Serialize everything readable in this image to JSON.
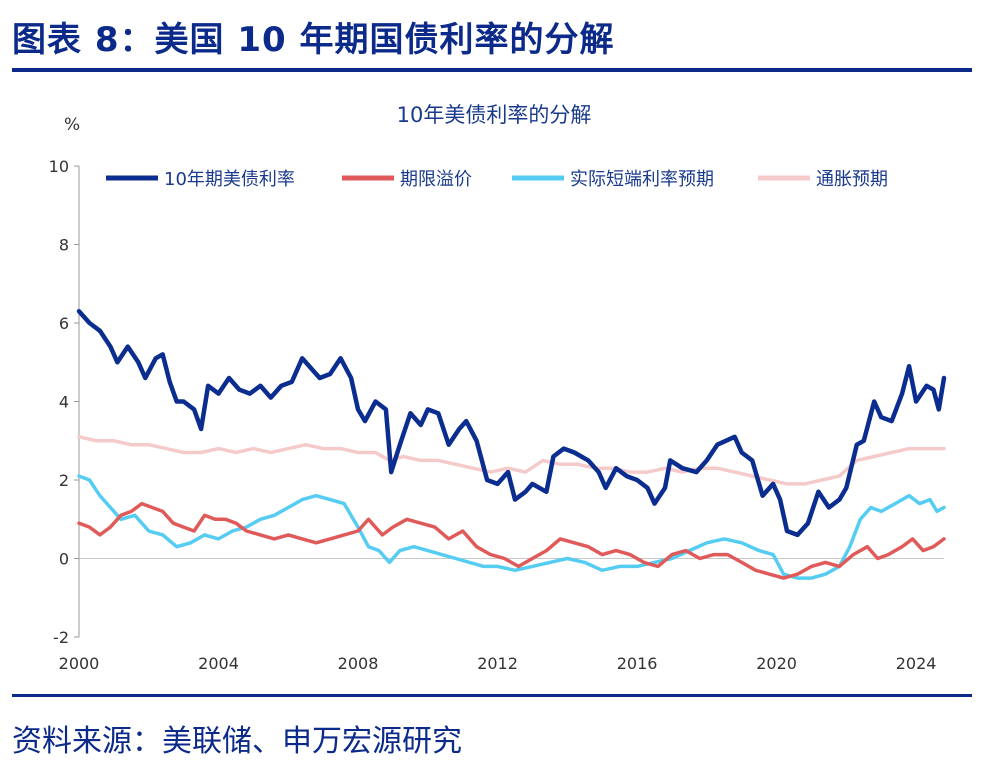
{
  "figure": {
    "title": "图表 8：美国 10 年期国债利率的分解",
    "source": "资料来源：美联储、申万宏源研究",
    "color": "#0b2a8a"
  },
  "chart_data": {
    "type": "line",
    "title": "10年美债利率的分解",
    "ylabel": "%",
    "xlabel": "",
    "xlim": [
      2000,
      2024.8
    ],
    "ylim": [
      -2,
      10
    ],
    "x_ticks": [
      2000,
      2004,
      2008,
      2012,
      2016,
      2020,
      2024
    ],
    "y_ticks": [
      -2,
      0,
      2,
      4,
      6,
      8,
      10
    ],
    "legend_position": "top",
    "series": [
      {
        "name": "10年期美债利率",
        "color": "#0b2d8f",
        "points": [
          [
            2000.0,
            6.3
          ],
          [
            2000.3,
            6.0
          ],
          [
            2000.6,
            5.8
          ],
          [
            2000.9,
            5.4
          ],
          [
            2001.1,
            5.0
          ],
          [
            2001.4,
            5.4
          ],
          [
            2001.7,
            5.0
          ],
          [
            2001.9,
            4.6
          ],
          [
            2002.2,
            5.1
          ],
          [
            2002.4,
            5.2
          ],
          [
            2002.6,
            4.5
          ],
          [
            2002.8,
            4.0
          ],
          [
            2003.0,
            4.0
          ],
          [
            2003.3,
            3.8
          ],
          [
            2003.5,
            3.3
          ],
          [
            2003.7,
            4.4
          ],
          [
            2004.0,
            4.2
          ],
          [
            2004.3,
            4.6
          ],
          [
            2004.6,
            4.3
          ],
          [
            2004.9,
            4.2
          ],
          [
            2005.2,
            4.4
          ],
          [
            2005.5,
            4.1
          ],
          [
            2005.8,
            4.4
          ],
          [
            2006.1,
            4.5
          ],
          [
            2006.4,
            5.1
          ],
          [
            2006.7,
            4.8
          ],
          [
            2006.9,
            4.6
          ],
          [
            2007.2,
            4.7
          ],
          [
            2007.5,
            5.1
          ],
          [
            2007.8,
            4.6
          ],
          [
            2008.0,
            3.8
          ],
          [
            2008.2,
            3.5
          ],
          [
            2008.5,
            4.0
          ],
          [
            2008.8,
            3.8
          ],
          [
            2008.95,
            2.2
          ],
          [
            2009.2,
            2.9
          ],
          [
            2009.5,
            3.7
          ],
          [
            2009.8,
            3.4
          ],
          [
            2010.0,
            3.8
          ],
          [
            2010.3,
            3.7
          ],
          [
            2010.6,
            2.9
          ],
          [
            2010.9,
            3.3
          ],
          [
            2011.1,
            3.5
          ],
          [
            2011.4,
            3.0
          ],
          [
            2011.7,
            2.0
          ],
          [
            2012.0,
            1.9
          ],
          [
            2012.3,
            2.2
          ],
          [
            2012.5,
            1.5
          ],
          [
            2012.8,
            1.7
          ],
          [
            2013.0,
            1.9
          ],
          [
            2013.4,
            1.7
          ],
          [
            2013.6,
            2.6
          ],
          [
            2013.9,
            2.8
          ],
          [
            2014.2,
            2.7
          ],
          [
            2014.6,
            2.5
          ],
          [
            2014.9,
            2.2
          ],
          [
            2015.1,
            1.8
          ],
          [
            2015.4,
            2.3
          ],
          [
            2015.7,
            2.1
          ],
          [
            2016.0,
            2.0
          ],
          [
            2016.3,
            1.8
          ],
          [
            2016.5,
            1.4
          ],
          [
            2016.8,
            1.8
          ],
          [
            2016.95,
            2.5
          ],
          [
            2017.3,
            2.3
          ],
          [
            2017.7,
            2.2
          ],
          [
            2018.0,
            2.5
          ],
          [
            2018.3,
            2.9
          ],
          [
            2018.8,
            3.1
          ],
          [
            2019.0,
            2.7
          ],
          [
            2019.3,
            2.5
          ],
          [
            2019.6,
            1.6
          ],
          [
            2019.9,
            1.9
          ],
          [
            2020.1,
            1.5
          ],
          [
            2020.3,
            0.7
          ],
          [
            2020.6,
            0.6
          ],
          [
            2020.9,
            0.9
          ],
          [
            2021.2,
            1.7
          ],
          [
            2021.5,
            1.3
          ],
          [
            2021.8,
            1.5
          ],
          [
            2022.0,
            1.8
          ],
          [
            2022.3,
            2.9
          ],
          [
            2022.5,
            3.0
          ],
          [
            2022.8,
            4.0
          ],
          [
            2023.0,
            3.6
          ],
          [
            2023.3,
            3.5
          ],
          [
            2023.6,
            4.2
          ],
          [
            2023.8,
            4.9
          ],
          [
            2024.0,
            4.0
          ],
          [
            2024.3,
            4.4
          ],
          [
            2024.5,
            4.3
          ],
          [
            2024.65,
            3.8
          ],
          [
            2024.8,
            4.6
          ]
        ]
      },
      {
        "name": "期限溢价",
        "color": "#e05a5a",
        "points": [
          [
            2000.0,
            0.9
          ],
          [
            2000.3,
            0.8
          ],
          [
            2000.6,
            0.6
          ],
          [
            2000.9,
            0.8
          ],
          [
            2001.2,
            1.1
          ],
          [
            2001.5,
            1.2
          ],
          [
            2001.8,
            1.4
          ],
          [
            2002.1,
            1.3
          ],
          [
            2002.4,
            1.2
          ],
          [
            2002.7,
            0.9
          ],
          [
            2003.0,
            0.8
          ],
          [
            2003.3,
            0.7
          ],
          [
            2003.6,
            1.1
          ],
          [
            2003.9,
            1.0
          ],
          [
            2004.2,
            1.0
          ],
          [
            2004.5,
            0.9
          ],
          [
            2004.8,
            0.7
          ],
          [
            2005.2,
            0.6
          ],
          [
            2005.6,
            0.5
          ],
          [
            2006.0,
            0.6
          ],
          [
            2006.4,
            0.5
          ],
          [
            2006.8,
            0.4
          ],
          [
            2007.2,
            0.5
          ],
          [
            2007.6,
            0.6
          ],
          [
            2008.0,
            0.7
          ],
          [
            2008.3,
            1.0
          ],
          [
            2008.7,
            0.6
          ],
          [
            2009.0,
            0.8
          ],
          [
            2009.4,
            1.0
          ],
          [
            2009.8,
            0.9
          ],
          [
            2010.2,
            0.8
          ],
          [
            2010.6,
            0.5
          ],
          [
            2011.0,
            0.7
          ],
          [
            2011.4,
            0.3
          ],
          [
            2011.8,
            0.1
          ],
          [
            2012.2,
            0.0
          ],
          [
            2012.6,
            -0.2
          ],
          [
            2013.0,
            0.0
          ],
          [
            2013.4,
            0.2
          ],
          [
            2013.8,
            0.5
          ],
          [
            2014.2,
            0.4
          ],
          [
            2014.6,
            0.3
          ],
          [
            2015.0,
            0.1
          ],
          [
            2015.4,
            0.2
          ],
          [
            2015.8,
            0.1
          ],
          [
            2016.2,
            -0.1
          ],
          [
            2016.6,
            -0.2
          ],
          [
            2017.0,
            0.1
          ],
          [
            2017.4,
            0.2
          ],
          [
            2017.8,
            0.0
          ],
          [
            2018.2,
            0.1
          ],
          [
            2018.6,
            0.1
          ],
          [
            2019.0,
            -0.1
          ],
          [
            2019.4,
            -0.3
          ],
          [
            2019.8,
            -0.4
          ],
          [
            2020.2,
            -0.5
          ],
          [
            2020.6,
            -0.4
          ],
          [
            2021.0,
            -0.2
          ],
          [
            2021.4,
            -0.1
          ],
          [
            2021.8,
            -0.2
          ],
          [
            2022.2,
            0.1
          ],
          [
            2022.6,
            0.3
          ],
          [
            2022.9,
            0.0
          ],
          [
            2023.2,
            0.1
          ],
          [
            2023.6,
            0.3
          ],
          [
            2023.9,
            0.5
          ],
          [
            2024.2,
            0.2
          ],
          [
            2024.5,
            0.3
          ],
          [
            2024.8,
            0.5
          ]
        ]
      },
      {
        "name": "实际短端利率预期",
        "color": "#55ccf2",
        "points": [
          [
            2000.0,
            2.1
          ],
          [
            2000.3,
            2.0
          ],
          [
            2000.6,
            1.6
          ],
          [
            2000.9,
            1.3
          ],
          [
            2001.2,
            1.0
          ],
          [
            2001.6,
            1.1
          ],
          [
            2002.0,
            0.7
          ],
          [
            2002.4,
            0.6
          ],
          [
            2002.8,
            0.3
          ],
          [
            2003.2,
            0.4
          ],
          [
            2003.6,
            0.6
          ],
          [
            2004.0,
            0.5
          ],
          [
            2004.4,
            0.7
          ],
          [
            2004.8,
            0.8
          ],
          [
            2005.2,
            1.0
          ],
          [
            2005.6,
            1.1
          ],
          [
            2006.0,
            1.3
          ],
          [
            2006.4,
            1.5
          ],
          [
            2006.8,
            1.6
          ],
          [
            2007.2,
            1.5
          ],
          [
            2007.6,
            1.4
          ],
          [
            2008.0,
            0.8
          ],
          [
            2008.3,
            0.3
          ],
          [
            2008.6,
            0.2
          ],
          [
            2008.9,
            -0.1
          ],
          [
            2009.2,
            0.2
          ],
          [
            2009.6,
            0.3
          ],
          [
            2010.0,
            0.2
          ],
          [
            2010.4,
            0.1
          ],
          [
            2010.8,
            0.0
          ],
          [
            2011.2,
            -0.1
          ],
          [
            2011.6,
            -0.2
          ],
          [
            2012.0,
            -0.2
          ],
          [
            2012.5,
            -0.3
          ],
          [
            2013.0,
            -0.2
          ],
          [
            2013.5,
            -0.1
          ],
          [
            2014.0,
            0.0
          ],
          [
            2014.5,
            -0.1
          ],
          [
            2015.0,
            -0.3
          ],
          [
            2015.5,
            -0.2
          ],
          [
            2016.0,
            -0.2
          ],
          [
            2016.5,
            -0.1
          ],
          [
            2017.0,
            0.0
          ],
          [
            2017.5,
            0.2
          ],
          [
            2018.0,
            0.4
          ],
          [
            2018.5,
            0.5
          ],
          [
            2019.0,
            0.4
          ],
          [
            2019.5,
            0.2
          ],
          [
            2019.9,
            0.1
          ],
          [
            2020.2,
            -0.4
          ],
          [
            2020.6,
            -0.5
          ],
          [
            2021.0,
            -0.5
          ],
          [
            2021.4,
            -0.4
          ],
          [
            2021.8,
            -0.2
          ],
          [
            2022.1,
            0.3
          ],
          [
            2022.4,
            1.0
          ],
          [
            2022.7,
            1.3
          ],
          [
            2023.0,
            1.2
          ],
          [
            2023.4,
            1.4
          ],
          [
            2023.8,
            1.6
          ],
          [
            2024.1,
            1.4
          ],
          [
            2024.4,
            1.5
          ],
          [
            2024.6,
            1.2
          ],
          [
            2024.8,
            1.3
          ]
        ]
      },
      {
        "name": "通胀预期",
        "color": "#f4caca",
        "points": [
          [
            2000.0,
            3.1
          ],
          [
            2000.5,
            3.0
          ],
          [
            2001.0,
            3.0
          ],
          [
            2001.5,
            2.9
          ],
          [
            2002.0,
            2.9
          ],
          [
            2002.5,
            2.8
          ],
          [
            2003.0,
            2.7
          ],
          [
            2003.5,
            2.7
          ],
          [
            2004.0,
            2.8
          ],
          [
            2004.5,
            2.7
          ],
          [
            2005.0,
            2.8
          ],
          [
            2005.5,
            2.7
          ],
          [
            2006.0,
            2.8
          ],
          [
            2006.5,
            2.9
          ],
          [
            2007.0,
            2.8
          ],
          [
            2007.5,
            2.8
          ],
          [
            2008.0,
            2.7
          ],
          [
            2008.5,
            2.7
          ],
          [
            2008.9,
            2.5
          ],
          [
            2009.3,
            2.6
          ],
          [
            2009.8,
            2.5
          ],
          [
            2010.3,
            2.5
          ],
          [
            2010.8,
            2.4
          ],
          [
            2011.3,
            2.3
          ],
          [
            2011.8,
            2.2
          ],
          [
            2012.3,
            2.3
          ],
          [
            2012.8,
            2.2
          ],
          [
            2013.3,
            2.5
          ],
          [
            2013.8,
            2.4
          ],
          [
            2014.3,
            2.4
          ],
          [
            2014.8,
            2.3
          ],
          [
            2015.3,
            2.3
          ],
          [
            2015.8,
            2.2
          ],
          [
            2016.3,
            2.2
          ],
          [
            2016.8,
            2.3
          ],
          [
            2017.3,
            2.2
          ],
          [
            2017.8,
            2.3
          ],
          [
            2018.3,
            2.3
          ],
          [
            2018.8,
            2.2
          ],
          [
            2019.3,
            2.1
          ],
          [
            2019.8,
            2.0
          ],
          [
            2020.3,
            1.9
          ],
          [
            2020.8,
            1.9
          ],
          [
            2021.3,
            2.0
          ],
          [
            2021.8,
            2.1
          ],
          [
            2022.3,
            2.5
          ],
          [
            2022.8,
            2.6
          ],
          [
            2023.3,
            2.7
          ],
          [
            2023.8,
            2.8
          ],
          [
            2024.3,
            2.8
          ],
          [
            2024.8,
            2.8
          ]
        ]
      }
    ]
  }
}
